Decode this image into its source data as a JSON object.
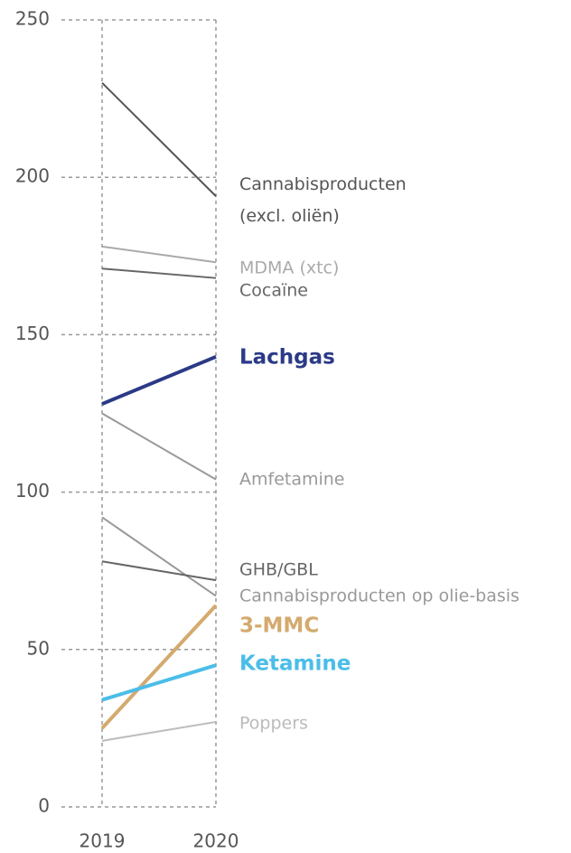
{
  "chart_data": {
    "type": "slope",
    "categories": [
      "2019",
      "2020"
    ],
    "ylim": [
      0,
      250
    ],
    "yticks": [
      0,
      50,
      100,
      150,
      200,
      250
    ],
    "grid": true,
    "series": [
      {
        "name": "Cannabisproducten (excl. oliën)",
        "color": "#555555",
        "values": [
          230,
          194
        ]
      },
      {
        "name": "MDMA (xtc)",
        "color": "#aaaaaa",
        "values": [
          178,
          173
        ]
      },
      {
        "name": "Cocaïne",
        "color": "#666666",
        "values": [
          171,
          168
        ]
      },
      {
        "name": "Lachgas",
        "color": "#2b3a87",
        "values": [
          128,
          143
        ],
        "highlight": true
      },
      {
        "name": "Amfetamine",
        "color": "#999999",
        "values": [
          125,
          104
        ]
      },
      {
        "name": "Cannabisproducten op olie-basis",
        "color": "#999999",
        "values": [
          92,
          67
        ]
      },
      {
        "name": "GHB/GBL",
        "color": "#666666",
        "values": [
          78,
          72
        ]
      },
      {
        "name": "3-MMC",
        "color": "#d4aa6e",
        "values": [
          25,
          64
        ],
        "highlight": true
      },
      {
        "name": "Ketamine",
        "color": "#4bbde8",
        "values": [
          34,
          45
        ],
        "highlight": true
      },
      {
        "name": "Poppers",
        "color": "#bbbbbb",
        "values": [
          21,
          27
        ]
      }
    ]
  }
}
